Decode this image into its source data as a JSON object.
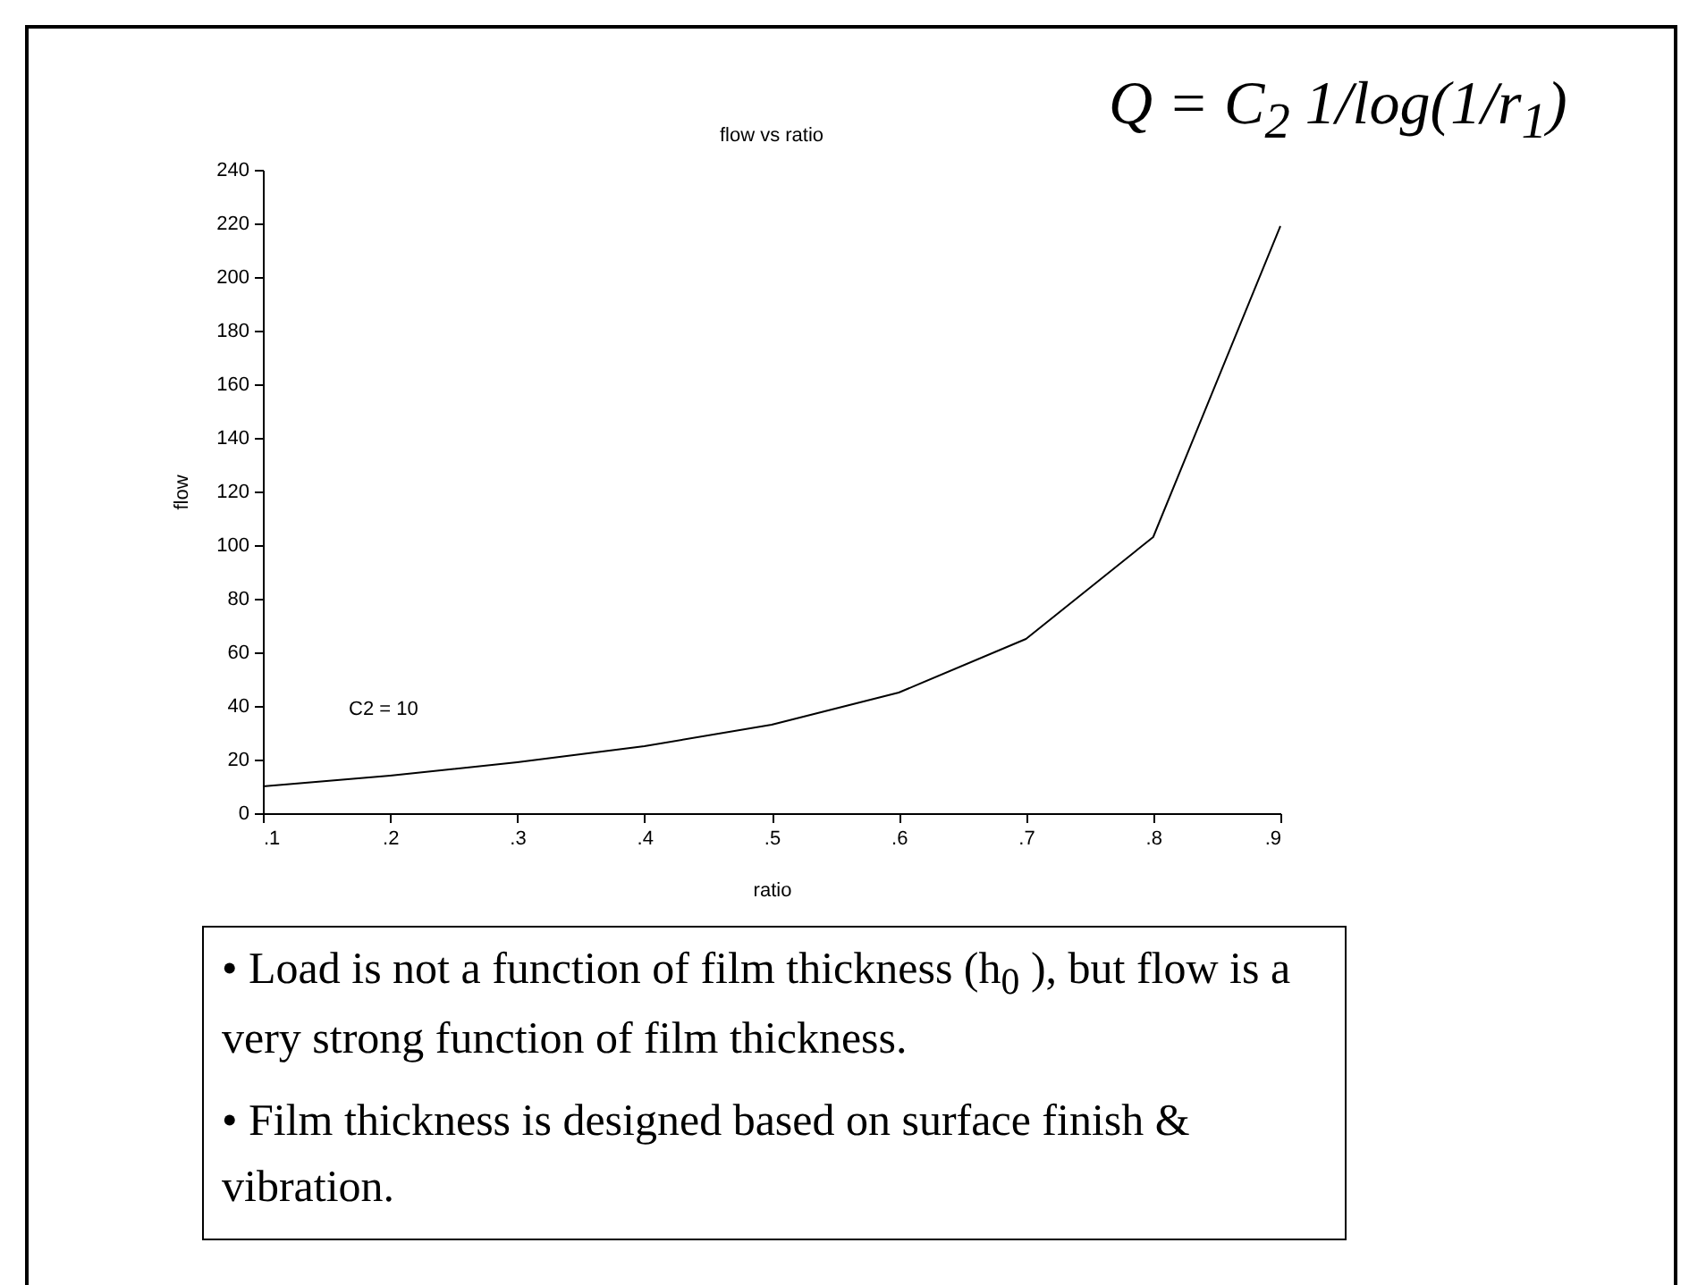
{
  "chart_data": {
    "type": "line",
    "title": "flow vs ratio",
    "xlabel": "ratio",
    "ylabel": "flow",
    "x": [
      0.1,
      0.2,
      0.3,
      0.4,
      0.5,
      0.6,
      0.7,
      0.8,
      0.9
    ],
    "series": [
      {
        "color": "#000000",
        "values": [
          10,
          14,
          19,
          25,
          33,
          45,
          65,
          103,
          219
        ]
      }
    ],
    "xlim": [
      0.1,
      0.9
    ],
    "xticks": [
      {
        "value": 0.1,
        "label": ".1"
      },
      {
        "value": 0.2,
        "label": ".2"
      },
      {
        "value": 0.3,
        "label": ".3"
      },
      {
        "value": 0.4,
        "label": ".4"
      },
      {
        "value": 0.5,
        "label": ".5"
      },
      {
        "value": 0.6,
        "label": ".6"
      },
      {
        "value": 0.7,
        "label": ".7"
      },
      {
        "value": 0.8,
        "label": ".8"
      },
      {
        "value": 0.9,
        "label": ".9"
      }
    ],
    "ylim": [
      0,
      240
    ],
    "yticks": [
      0,
      20,
      40,
      60,
      80,
      100,
      120,
      140,
      160,
      180,
      200,
      220,
      240
    ],
    "grid": false,
    "line_style": "solid",
    "annotations": [
      "C2 = 10",
      "Q = C$_{2}$ 1/log(1/r$_{1}$)",
      "• Load is not a function of film thickness (h$_{0}$ ), but flow is a very strong function of film thickness.",
      "• Film thickness is designed based on surface finish & vibration."
    ]
  }
}
